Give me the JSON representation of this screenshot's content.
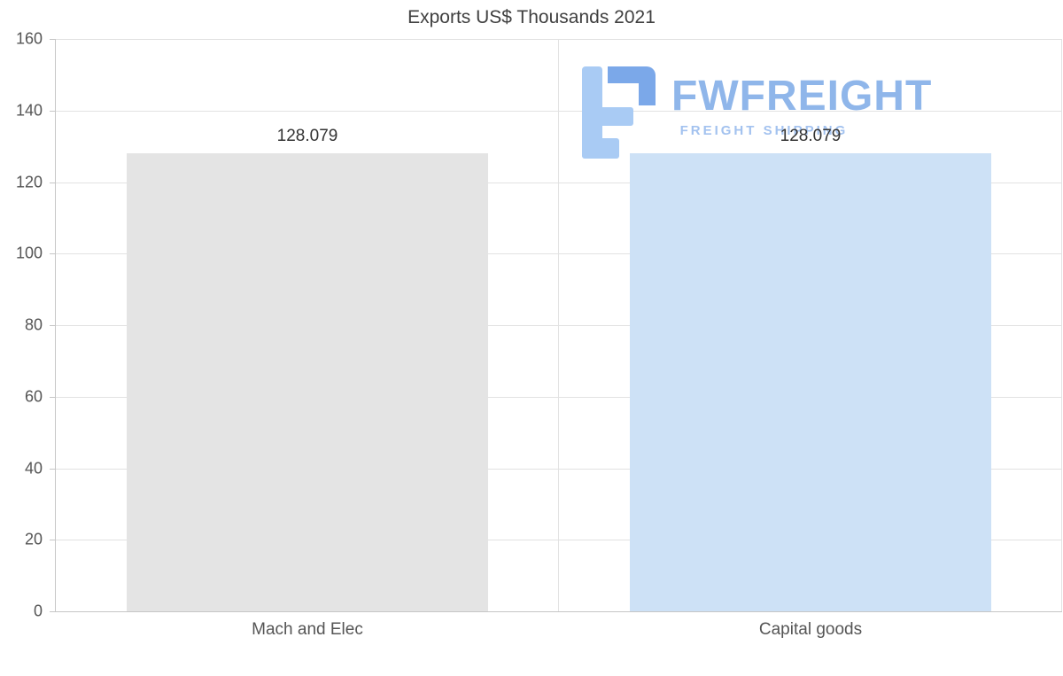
{
  "chart_data": {
    "type": "bar",
    "title": "Exports US$ Thousands 2021",
    "categories": [
      "Mach and Elec",
      "Capital goods"
    ],
    "values": [
      128.079,
      128.079
    ],
    "value_labels": [
      "128.079",
      "128.079"
    ],
    "series": [
      {
        "name": "Exports US$ Thousands 2021",
        "values": [
          128.079,
          128.079
        ]
      }
    ],
    "bar_colors": [
      "#e4e4e4",
      "#cde1f6"
    ],
    "xlabel": "",
    "ylabel": "",
    "ylim": [
      0,
      160
    ],
    "yticks": [
      0,
      20,
      40,
      60,
      80,
      100,
      120,
      140,
      160
    ],
    "grid": true,
    "legend_position": "none"
  },
  "watermark": {
    "brand": "FWFREIGHT",
    "tagline": "FREIGHT SHIPPING",
    "brand_color": "#8fb6ea",
    "tagline_color": "#a3c2ef",
    "icon_dark_color": "#7ba8e9",
    "icon_light_color": "#a9cbf4"
  }
}
